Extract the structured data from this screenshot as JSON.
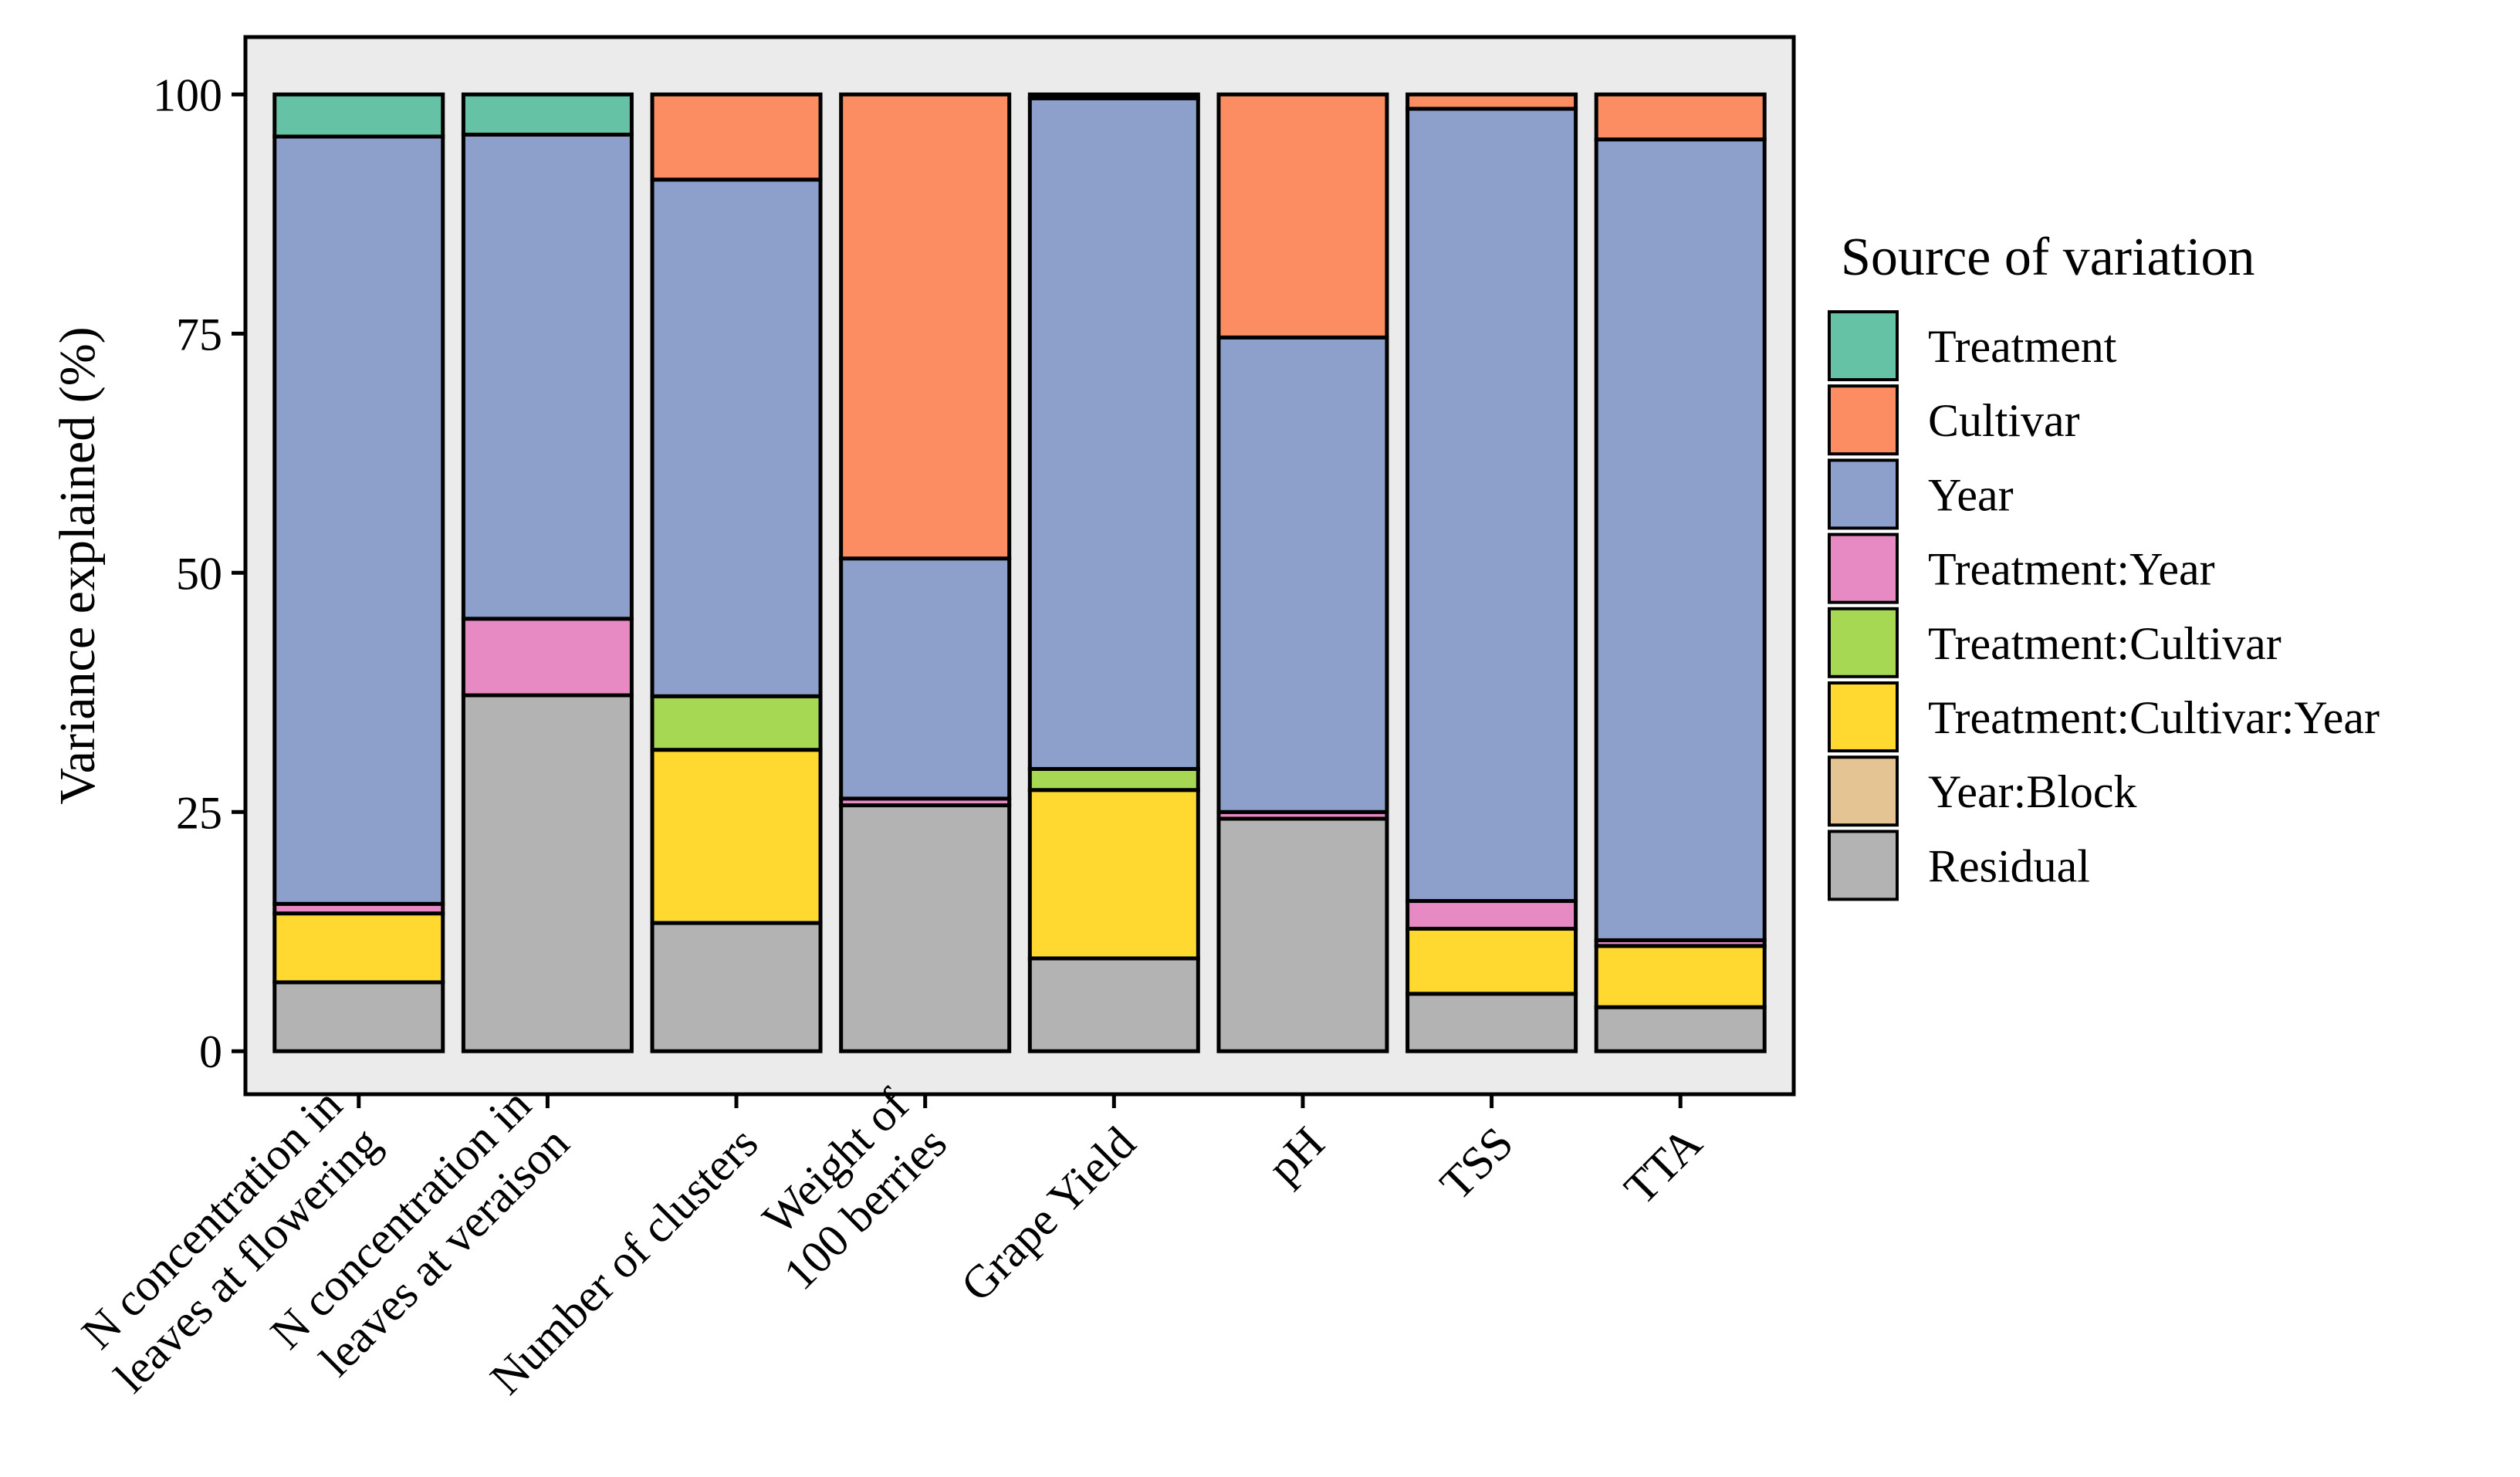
{
  "chart_data": {
    "type": "bar",
    "stacked": true,
    "ylabel": "Variance explained (%)",
    "ylim": [
      -4.5,
      106
    ],
    "yticks": [
      0,
      25,
      50,
      75,
      100
    ],
    "categories": [
      [
        "N concentration in",
        "leaves at flowering"
      ],
      [
        "N concentration in",
        "leaves at veraison"
      ],
      [
        "Number of clusters"
      ],
      [
        "Weight of",
        "100 berries"
      ],
      [
        "Grape Yield"
      ],
      [
        "pH"
      ],
      [
        "TSS"
      ],
      [
        "TTA"
      ]
    ],
    "legend_title": "Source of variation",
    "legend_position": "right",
    "series": [
      {
        "name": "Residual",
        "color": "#b3b3b3",
        "values": [
          7.2,
          37.2,
          13.4,
          25.7,
          9.7,
          24.3,
          6.0,
          4.6
        ]
      },
      {
        "name": "Year:Block",
        "color": "#e5c494",
        "values": [
          0,
          0,
          0,
          0,
          0,
          0,
          0,
          0
        ]
      },
      {
        "name": "Treatment:Cultivar:Year",
        "color": "#ffd92f",
        "values": [
          7.2,
          0,
          18.1,
          0,
          17.6,
          0,
          6.8,
          6.4
        ]
      },
      {
        "name": "Treatment:Cultivar",
        "color": "#a6d854",
        "values": [
          0,
          0,
          5.6,
          0,
          2.2,
          0,
          0,
          0
        ]
      },
      {
        "name": "Treatment:Year",
        "color": "#e78ac3",
        "values": [
          1.0,
          8.0,
          0,
          0.7,
          0,
          0.7,
          2.9,
          0.6
        ]
      },
      {
        "name": "Year",
        "color": "#8da0cb",
        "values": [
          80.2,
          50.6,
          54.0,
          25.1,
          70.1,
          49.6,
          82.8,
          83.7
        ]
      },
      {
        "name": "Cultivar",
        "color": "#fc8d62",
        "values": [
          0,
          0,
          8.9,
          48.5,
          0.4,
          25.4,
          1.5,
          4.7
        ]
      },
      {
        "name": "Treatment",
        "color": "#66c2a5",
        "values": [
          4.4,
          4.2,
          0,
          0,
          0,
          0,
          0,
          0
        ]
      }
    ],
    "legend_order": [
      "Treatment",
      "Cultivar",
      "Year",
      "Treatment:Year",
      "Treatment:Cultivar",
      "Treatment:Cultivar:Year",
      "Year:Block",
      "Residual"
    ],
    "grid": false,
    "panel_background": "#ebebeb"
  }
}
